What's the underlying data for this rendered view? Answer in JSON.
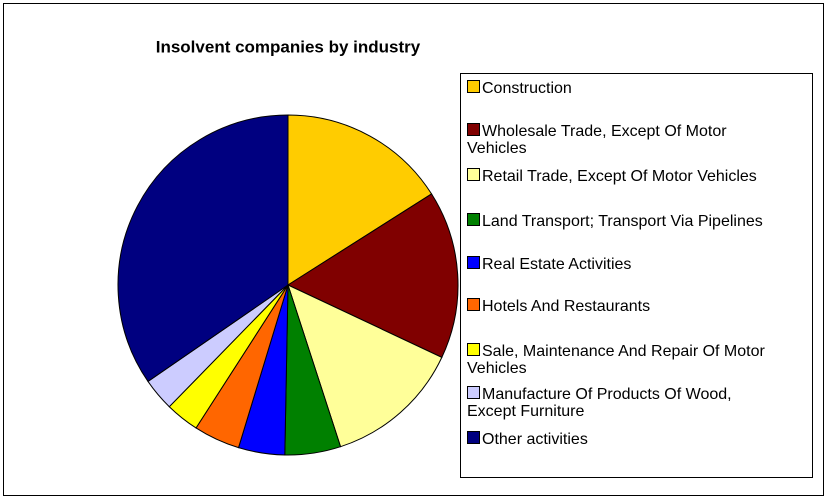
{
  "chart_data": {
    "type": "pie",
    "title": "Insolvent companies by industry",
    "categories": [
      "Construction",
      "Wholesale Trade, Except Of Motor Vehicles",
      "Retail Trade, Except Of Motor Vehicles",
      "Land Transport; Transport Via Pipelines",
      "Real Estate Activities",
      "Hotels And Restaurants",
      "Sale, Maintenance And Repair Of Motor Vehicles",
      "Manufacture Of Products Of Wood, Except Furniture",
      "Other activities"
    ],
    "values": [
      16,
      16,
      13,
      5.3,
      4.4,
      4.4,
      3.2,
      3.1,
      34.6
    ],
    "colors": [
      "#ffcc00",
      "#800000",
      "#ffff99",
      "#008000",
      "#0000ff",
      "#ff6600",
      "#ffff00",
      "#ccccff",
      "#000080"
    ],
    "legend": "right"
  }
}
